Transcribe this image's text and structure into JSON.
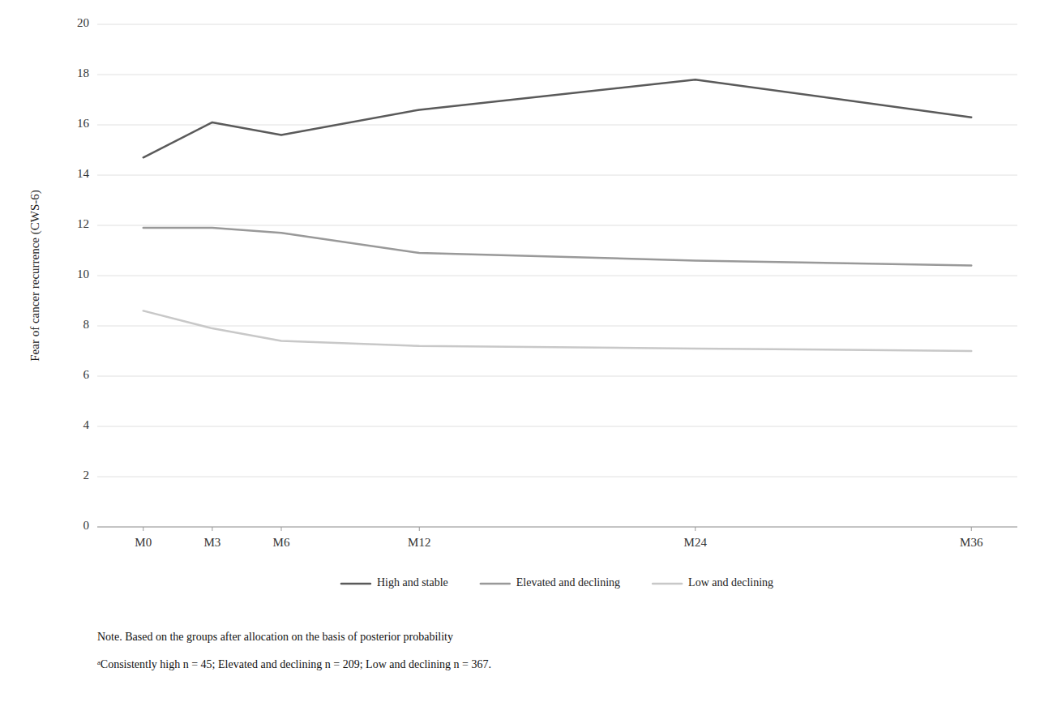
{
  "chart_data": {
    "type": "line",
    "x": [
      0,
      3,
      6,
      12,
      24,
      36
    ],
    "xlim": [
      -2,
      38
    ],
    "xticks": [
      {
        "value": 0,
        "label": "M0"
      },
      {
        "value": 3,
        "label": "M3"
      },
      {
        "value": 6,
        "label": "M6"
      },
      {
        "value": 12,
        "label": "M12"
      },
      {
        "value": 24,
        "label": "M24"
      },
      {
        "value": 36,
        "label": "M36"
      }
    ],
    "series": [
      {
        "name": "High and stable",
        "color": "#5a5a5a",
        "values": [
          14.7,
          16.1,
          15.6,
          16.6,
          17.8,
          16.3
        ]
      },
      {
        "name": "Elevated and declining",
        "color": "#999999",
        "values": [
          11.9,
          11.9,
          11.7,
          10.9,
          10.6,
          10.4
        ]
      },
      {
        "name": "Low and declining",
        "color": "#c8c8c8",
        "values": [
          8.6,
          7.9,
          7.4,
          7.2,
          7.1,
          7.0
        ]
      }
    ],
    "y_label": "Fear of cancer recurrence (CWS-6)",
    "ylim": [
      0,
      20
    ],
    "yticks": [
      0,
      2,
      4,
      6,
      8,
      10,
      12,
      14,
      16,
      18,
      20
    ],
    "grid": true,
    "legend": "bottom",
    "annotations": [
      "Note. Based on the groups after allocation on the basis of posterior probability",
      "ᵃConsistently high n = 45; Elevated and declining n = 209; Low and declining n = 367."
    ]
  }
}
